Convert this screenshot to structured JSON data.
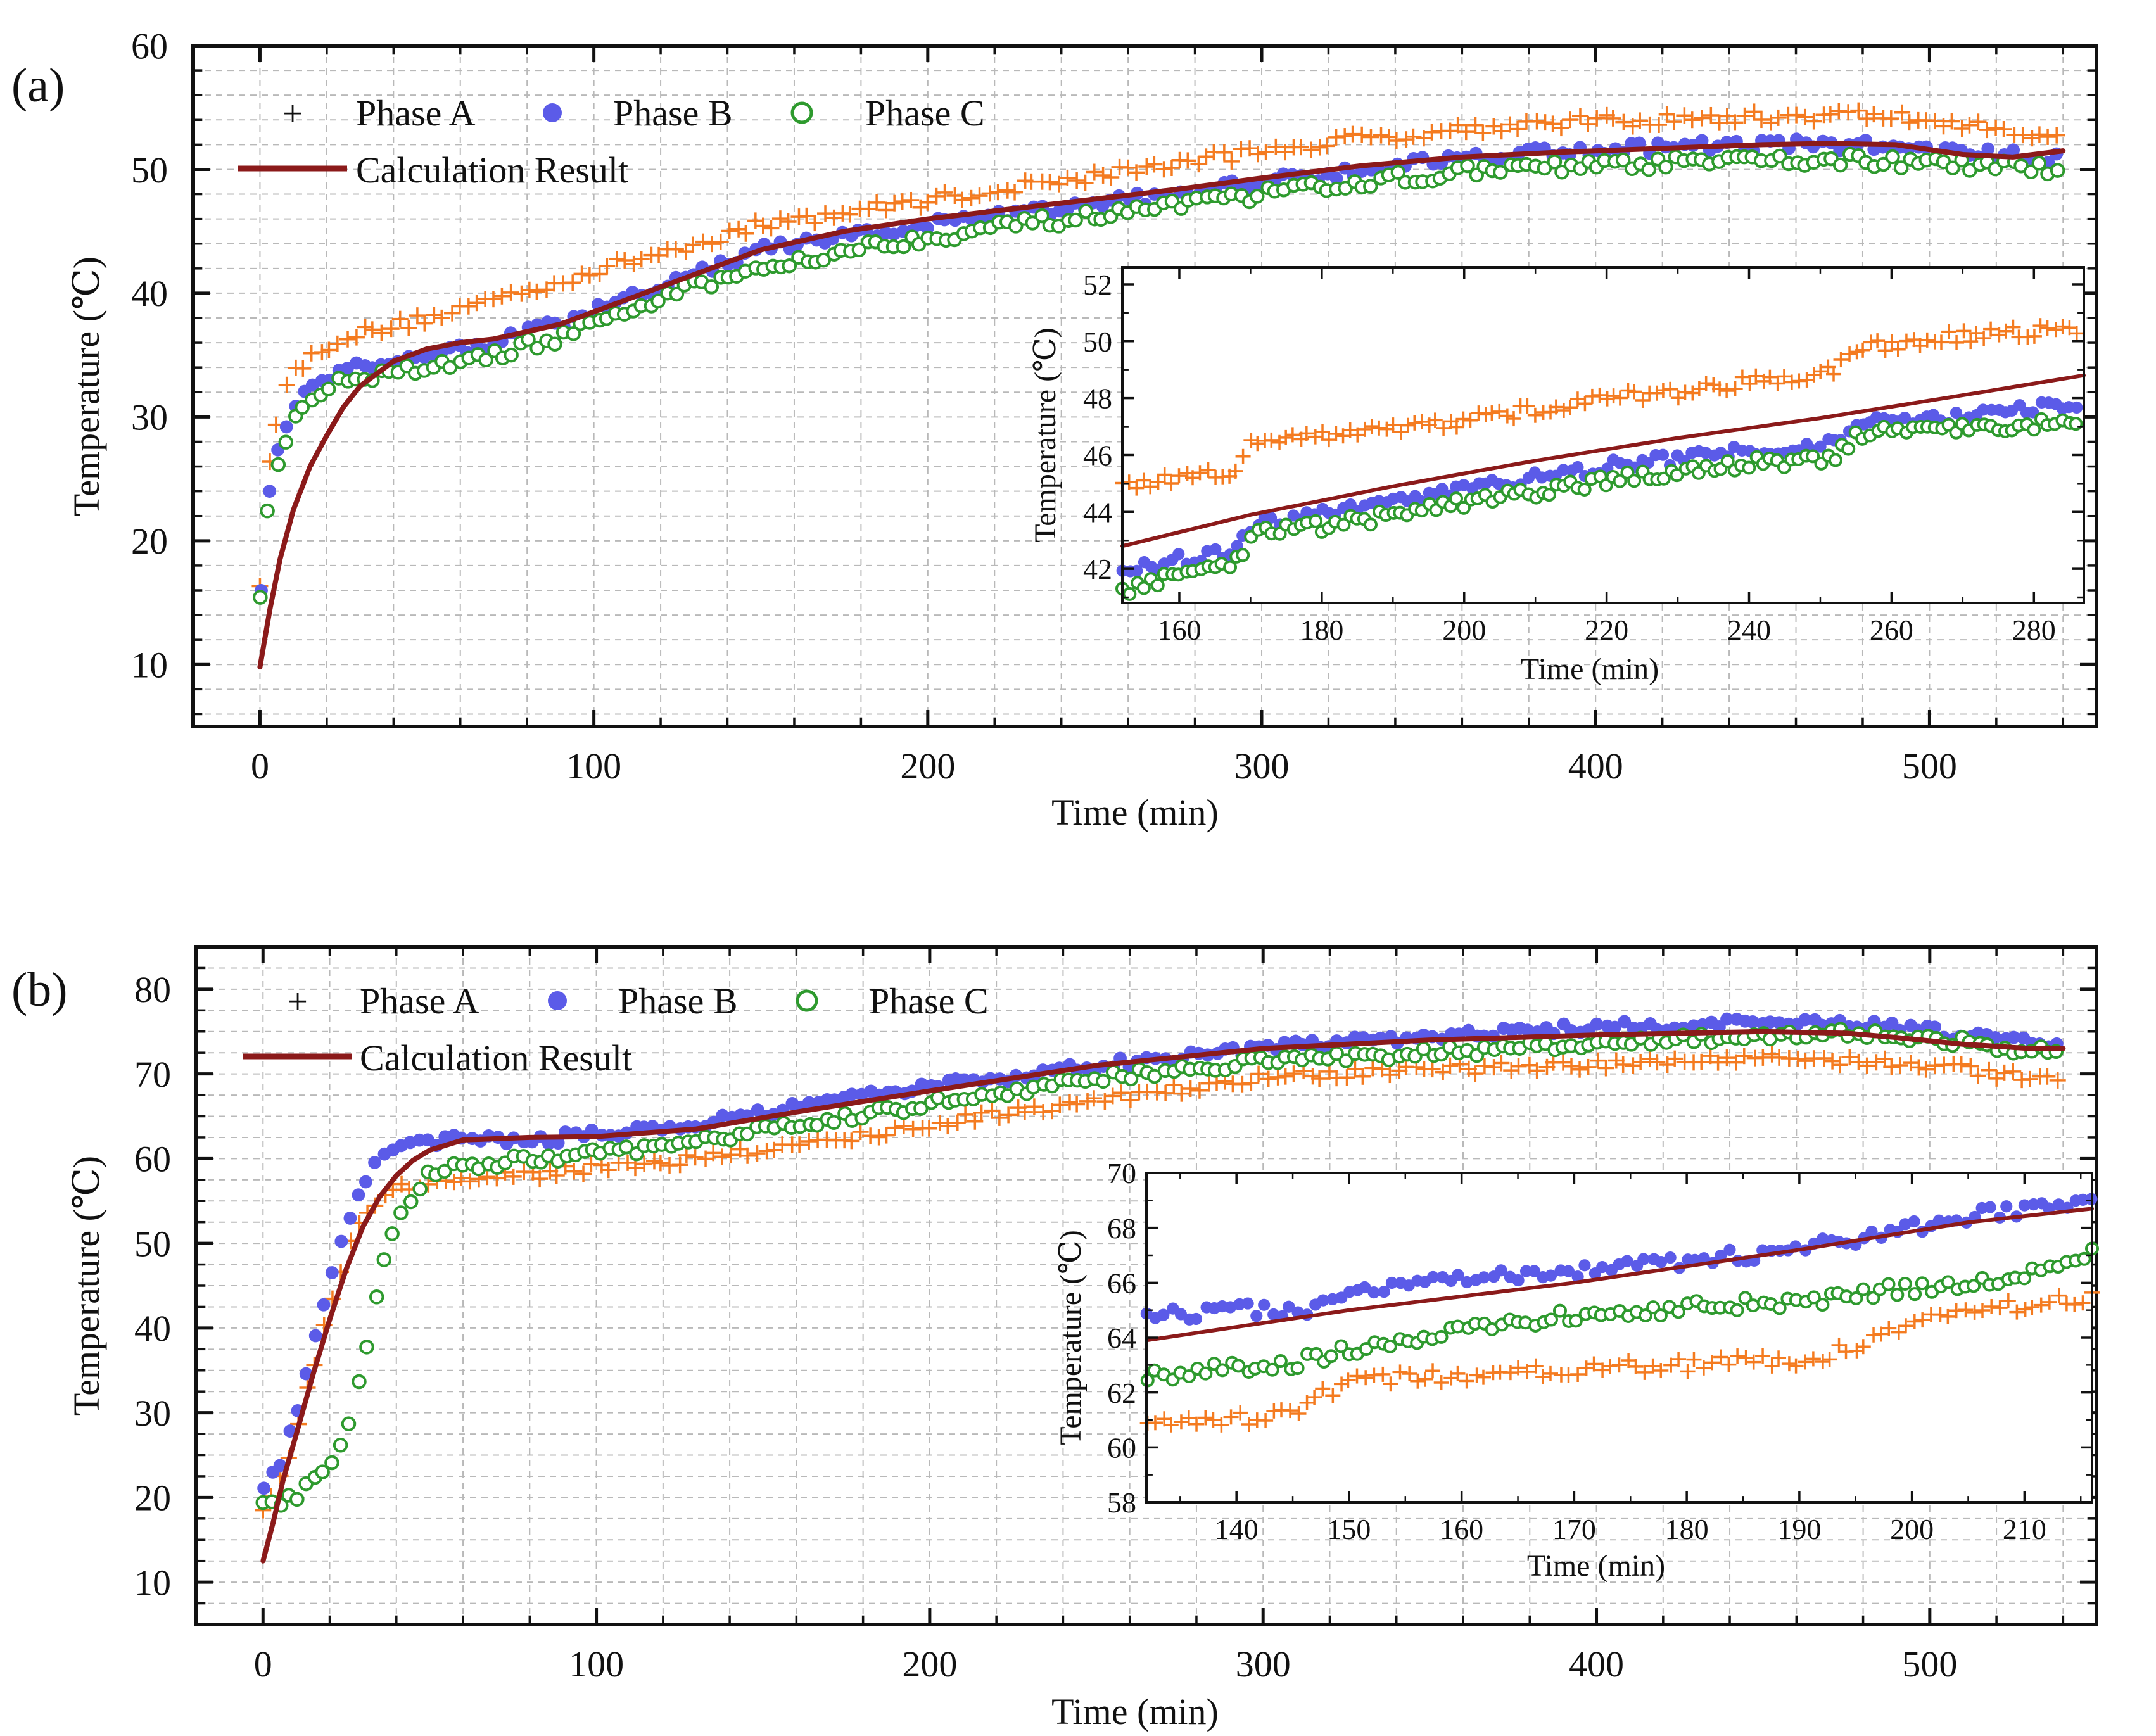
{
  "colors": {
    "phase_a": "#f47b20",
    "phase_b": "#5b5be8",
    "phase_c": "#2e9a2e",
    "calc": "#8b1a1a",
    "grid": "#b9b9b9"
  },
  "chart_data": [
    {
      "panel_label": "(a)",
      "type": "scatter",
      "xlabel": "Time (min)",
      "ylabel": "Temperature (℃)",
      "xlim": [
        -20,
        550
      ],
      "ylim": [
        5,
        60
      ],
      "xticks": [
        0,
        100,
        200,
        300,
        400,
        500
      ],
      "yticks": [
        10,
        20,
        30,
        40,
        50,
        60
      ],
      "legend": {
        "position": "top-left",
        "entries": [
          "Phase A",
          "Phase B",
          "Phase C",
          "Calculation Result"
        ]
      },
      "series": [
        {
          "name": "Phase A",
          "marker": "plus",
          "x": [
            0,
            1,
            2,
            3,
            4,
            6,
            8,
            10,
            14,
            18,
            25,
            35,
            50,
            70,
            90,
            110,
            130,
            150,
            175,
            200,
            225,
            250,
            275,
            300,
            330,
            360,
            390,
            420,
            450,
            475,
            490,
            510,
            530,
            540
          ],
          "y": [
            16,
            21,
            24,
            27,
            29,
            31,
            32.5,
            33.5,
            34.5,
            35.5,
            36.5,
            37,
            38,
            39.5,
            41,
            42.5,
            44,
            45.5,
            46.5,
            47.5,
            48.5,
            49.5,
            50.5,
            51.5,
            52.5,
            53.3,
            53.8,
            54,
            54.2,
            54.4,
            54.3,
            53.5,
            53,
            52.8
          ]
        },
        {
          "name": "Phase B",
          "marker": "filled-circle",
          "x": [
            0,
            1,
            2,
            3,
            4,
            6,
            8,
            10,
            14,
            18,
            25,
            35,
            50,
            70,
            90,
            110,
            130,
            150,
            175,
            200,
            225,
            250,
            275,
            300,
            330,
            360,
            390,
            420,
            450,
            475,
            490,
            510,
            530,
            540
          ],
          "y": [
            14,
            19,
            22,
            24,
            26,
            28,
            29.5,
            30.5,
            32,
            33,
            34,
            34.3,
            35,
            36,
            37.5,
            39.5,
            41.5,
            43.5,
            44.5,
            45.5,
            46.3,
            47.2,
            48,
            49,
            50,
            51,
            51.5,
            51.8,
            52,
            52,
            51.8,
            51.3,
            51,
            51
          ]
        },
        {
          "name": "Phase C",
          "marker": "open-circle",
          "x": [
            0,
            1,
            2,
            3,
            4,
            6,
            8,
            10,
            14,
            18,
            25,
            35,
            50,
            70,
            90,
            110,
            130,
            150,
            175,
            200,
            225,
            250,
            275,
            300,
            330,
            360,
            390,
            420,
            450,
            475,
            490,
            510,
            530,
            540
          ],
          "y": [
            15,
            19,
            22,
            24,
            25.5,
            27,
            28.5,
            30,
            31.2,
            32,
            33,
            33.2,
            34,
            35,
            36.5,
            38.5,
            40.5,
            42,
            43.5,
            44.5,
            45.5,
            46.2,
            47,
            48,
            49,
            49.8,
            50.2,
            50.5,
            50.7,
            50.8,
            50.6,
            50.3,
            50.1,
            50
          ]
        },
        {
          "name": "Calculation Result",
          "marker": "line",
          "x": [
            0,
            3,
            6,
            10,
            15,
            20,
            25,
            30,
            40,
            50,
            60,
            70,
            90,
            110,
            130,
            150,
            175,
            200,
            225,
            250,
            275,
            300,
            330,
            360,
            390,
            420,
            450,
            470,
            490,
            510,
            525,
            540
          ],
          "y": [
            9.8,
            14.5,
            18.5,
            22.5,
            26,
            28.5,
            30.8,
            32.5,
            34.5,
            35.5,
            36,
            36.3,
            37.5,
            39.5,
            41.5,
            43.5,
            45,
            46,
            46.8,
            47.6,
            48.4,
            49.3,
            50.3,
            51,
            51.4,
            51.7,
            52,
            52.1,
            52,
            51.2,
            51,
            51.5
          ]
        }
      ],
      "inset": {
        "xlabel": "Time (min)",
        "ylabel": "Temperature (℃)",
        "xlim": [
          152,
          287
        ],
        "ylim": [
          40.8,
          52.6
        ],
        "xticks": [
          160,
          180,
          200,
          220,
          240,
          260,
          280
        ],
        "yticks": [
          42,
          44,
          46,
          48,
          50,
          52
        ],
        "series": [
          {
            "name": "Phase A",
            "x": [
              152,
              160,
              168,
              170,
              180,
              190,
              200,
              210,
              220,
              230,
              240,
              252,
              255,
              260,
              270,
              280,
              286
            ],
            "y": [
              44.8,
              45.2,
              45.5,
              46.5,
              46.7,
              46.9,
              47.2,
              47.6,
              48,
              48.2,
              48.6,
              48.9,
              49.8,
              49.9,
              50.2,
              50.3,
              50.5
            ]
          },
          {
            "name": "Phase B",
            "x": [
              152,
              160,
              168,
              170,
              180,
              190,
              200,
              210,
              220,
              230,
              240,
              252,
              255,
              260,
              270,
              280,
              286
            ],
            "y": [
              42,
              42.3,
              42.6,
              43.5,
              43.9,
              44.3,
              44.8,
              45.2,
              45.6,
              45.9,
              46.2,
              46.4,
              47,
              47.2,
              47.3,
              47.6,
              47.8
            ]
          },
          {
            "name": "Phase C",
            "x": [
              152,
              160,
              168,
              170,
              180,
              190,
              200,
              210,
              220,
              230,
              240,
              252,
              255,
              260,
              270,
              280,
              286
            ],
            "y": [
              41.2,
              41.8,
              42.2,
              43.2,
              43.5,
              43.9,
              44.3,
              44.7,
              45.1,
              45.4,
              45.7,
              45.9,
              46.7,
              46.8,
              46.9,
              47.1,
              47.3
            ]
          },
          {
            "name": "Calculation Result",
            "x": [
              152,
              170,
              190,
              210,
              230,
              250,
              270,
              287
            ],
            "y": [
              42.8,
              43.9,
              44.9,
              45.8,
              46.6,
              47.3,
              48.1,
              48.8
            ]
          }
        ]
      }
    },
    {
      "panel_label": "(b)",
      "type": "scatter",
      "xlabel": "Time (min)",
      "ylabel": "Temperature (℃)",
      "xlim": [
        -20,
        550
      ],
      "ylim": [
        5,
        85
      ],
      "xticks": [
        0,
        100,
        200,
        300,
        400,
        500
      ],
      "yticks": [
        10,
        20,
        30,
        40,
        50,
        60,
        70,
        80
      ],
      "legend": {
        "position": "top-left",
        "entries": [
          "Phase A",
          "Phase B",
          "Phase C",
          "Calculation Result"
        ]
      },
      "series": [
        {
          "name": "Phase A",
          "marker": "plus",
          "x": [
            0,
            5,
            10,
            15,
            20,
            25,
            30,
            35,
            40,
            50,
            60,
            80,
            100,
            130,
            160,
            200,
            250,
            300,
            350,
            400,
            450,
            480,
            500,
            520,
            540
          ],
          "y": [
            19,
            22,
            28,
            35,
            43,
            49,
            53,
            55.5,
            56.5,
            57,
            57.5,
            58,
            59,
            60,
            61.5,
            64,
            67,
            69.5,
            70.5,
            71,
            72,
            71.5,
            71,
            70,
            69.5
          ]
        },
        {
          "name": "Phase B",
          "marker": "filled-circle",
          "x": [
            0,
            5,
            10,
            15,
            20,
            25,
            30,
            35,
            40,
            50,
            60,
            80,
            100,
            130,
            160,
            200,
            250,
            300,
            350,
            400,
            450,
            480,
            500,
            520,
            540
          ],
          "y": [
            21,
            24,
            30,
            38,
            46,
            52,
            57,
            60,
            61.5,
            62,
            62.5,
            62,
            63,
            64,
            66,
            68.5,
            71,
            73,
            74.5,
            75.5,
            76,
            76,
            75,
            74,
            73.5
          ]
        },
        {
          "name": "Phase C",
          "marker": "open-circle",
          "x": [
            0,
            5,
            10,
            15,
            20,
            25,
            30,
            35,
            40,
            50,
            60,
            80,
            100,
            130,
            160,
            200,
            250,
            300,
            350,
            400,
            450,
            480,
            500,
            520,
            540
          ],
          "y": [
            19,
            19.5,
            20,
            22,
            24,
            27,
            36,
            46,
            53,
            58.5,
            59,
            60,
            60.5,
            62,
            64,
            66.5,
            69.5,
            71.5,
            72.5,
            73.5,
            74.5,
            74.8,
            74.2,
            73.2,
            72.5
          ]
        },
        {
          "name": "Calculation Result",
          "marker": "line",
          "x": [
            0,
            3,
            6,
            10,
            15,
            20,
            25,
            30,
            35,
            40,
            45,
            50,
            60,
            80,
            100,
            130,
            160,
            200,
            250,
            300,
            350,
            400,
            450,
            475,
            490,
            510,
            530,
            540
          ],
          "y": [
            12.5,
            17,
            22,
            27.5,
            34.5,
            41,
            47,
            52,
            55.5,
            58,
            59.8,
            61,
            62.2,
            62.5,
            62.6,
            63.5,
            65.5,
            68,
            71,
            73,
            74,
            74.6,
            75,
            74.8,
            74.3,
            73.5,
            73,
            73
          ]
        }
      ],
      "inset": {
        "xlabel": "Time (min)",
        "ylabel": "Temperature (℃)",
        "xlim": [
          132,
          216
        ],
        "ylim": [
          58,
          70
        ],
        "xticks": [
          140,
          150,
          160,
          170,
          180,
          190,
          200,
          210
        ],
        "yticks": [
          58,
          60,
          62,
          64,
          66,
          68,
          70
        ],
        "series": [
          {
            "name": "Phase A",
            "x": [
              132,
              140,
              145,
              148,
              150,
              160,
              170,
              180,
              190,
              195,
              200,
              205,
              210,
              216
            ],
            "y": [
              60.8,
              61,
              61.2,
              62,
              62.5,
              62.6,
              62.9,
              63,
              63.2,
              63.6,
              64.5,
              65,
              65.2,
              65.5
            ]
          },
          {
            "name": "Phase B",
            "x": [
              132,
              140,
              145,
              148,
              150,
              160,
              170,
              180,
              190,
              195,
              200,
              205,
              210,
              216
            ],
            "y": [
              64.8,
              65,
              65,
              65.2,
              65.8,
              66.1,
              66.4,
              66.8,
              67.2,
              67.6,
              68,
              68.4,
              68.7,
              68.8
            ]
          },
          {
            "name": "Phase C",
            "x": [
              132,
              140,
              145,
              148,
              150,
              160,
              170,
              180,
              190,
              195,
              200,
              205,
              210,
              216
            ],
            "y": [
              62.6,
              62.9,
              63.1,
              63.3,
              63.6,
              64.3,
              64.8,
              65.1,
              65.3,
              65.6,
              65.8,
              66,
              66.3,
              67
            ]
          },
          {
            "name": "Calculation Result",
            "x": [
              132,
              150,
              170,
              190,
              205,
              216
            ],
            "y": [
              63.9,
              65,
              66,
              67.2,
              68.2,
              68.7
            ]
          }
        ]
      }
    }
  ]
}
